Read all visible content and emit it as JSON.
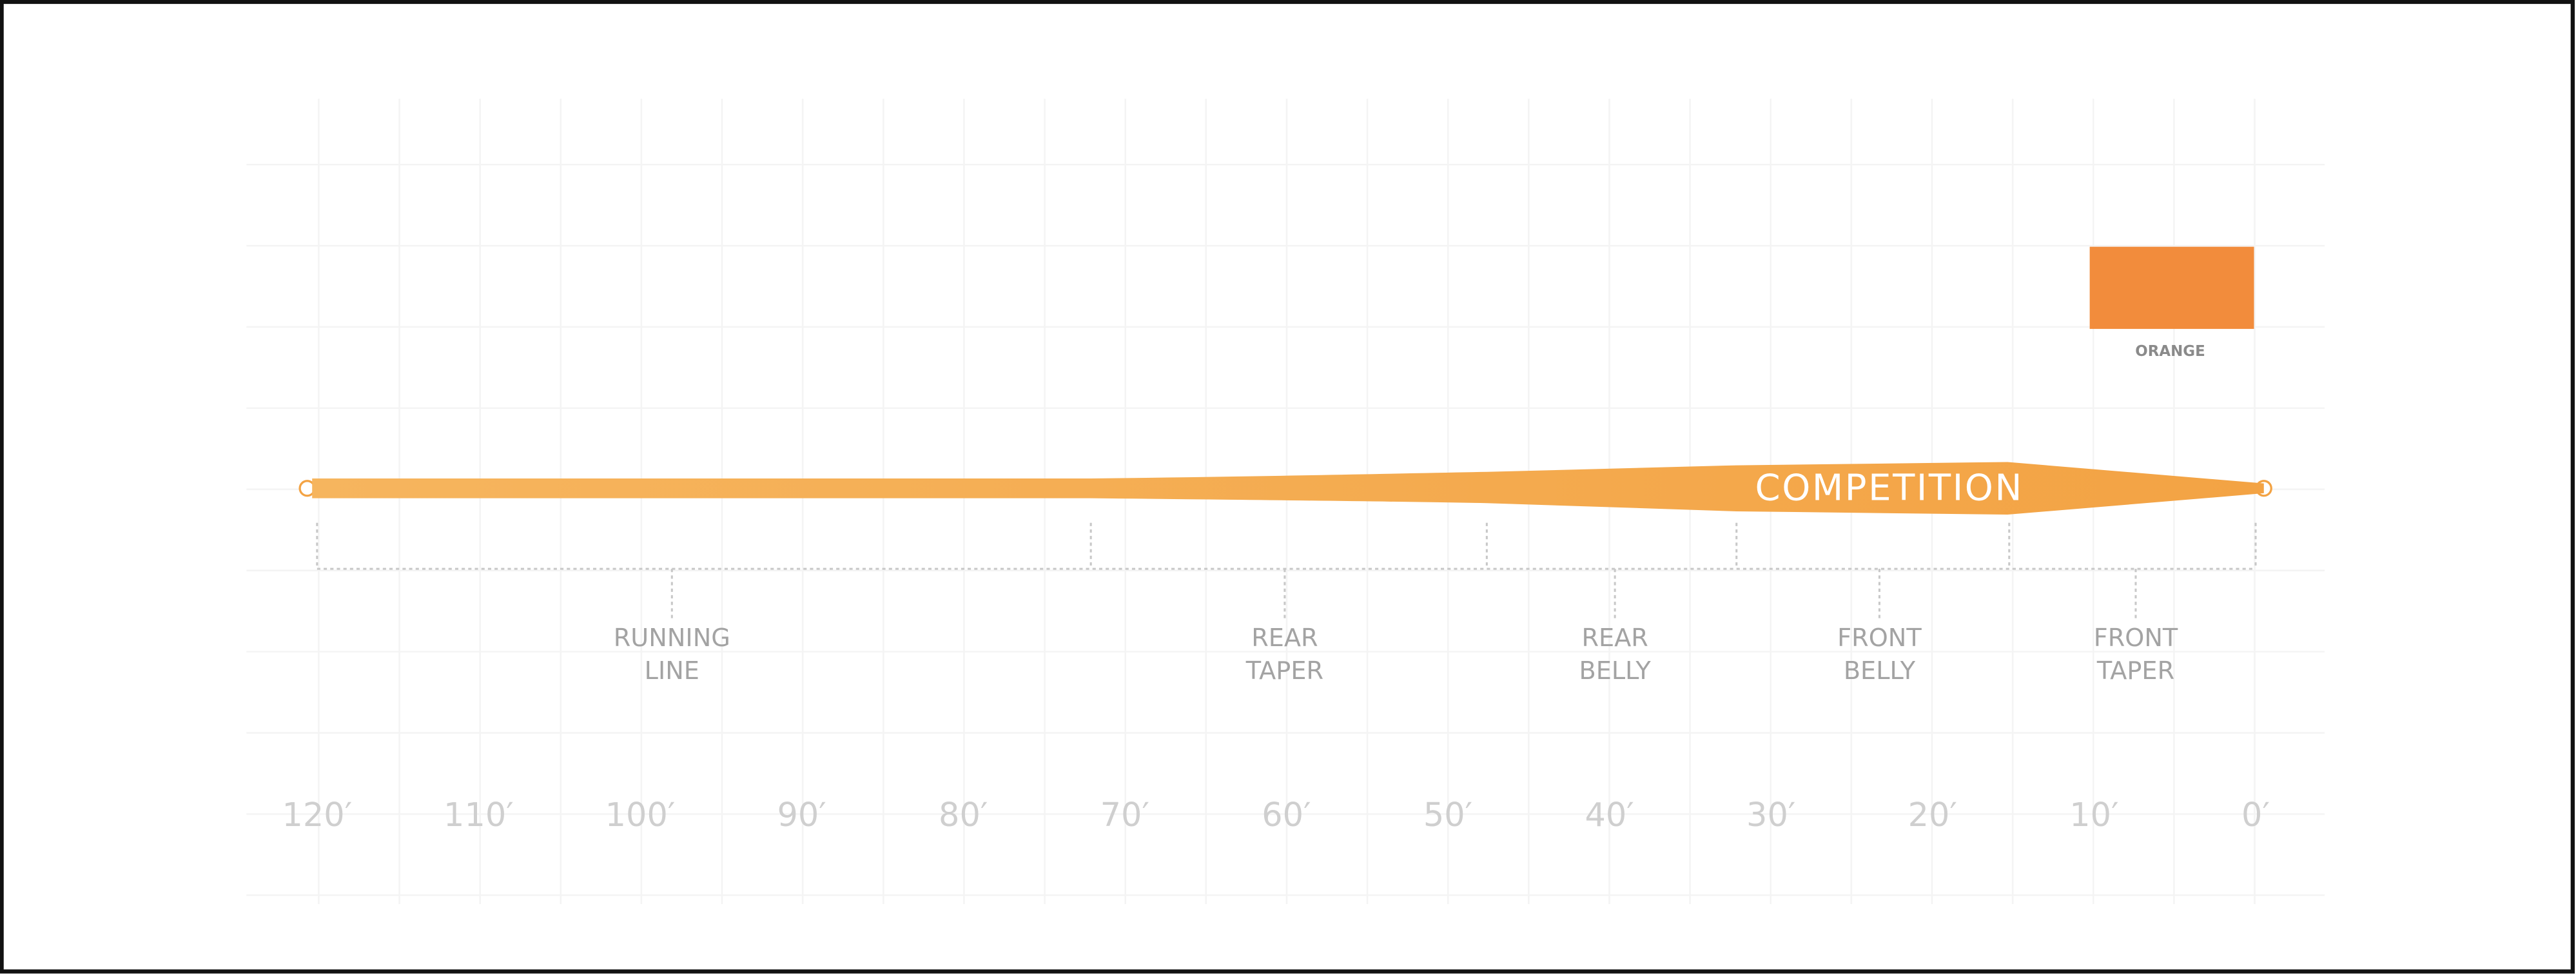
{
  "line_name": "COMPETITION",
  "swatch": {
    "label": "ORANGE"
  },
  "sections": [
    {
      "lines": [
        "RUNNING",
        "LINE"
      ]
    },
    {
      "lines": [
        "REAR",
        "TAPER"
      ]
    },
    {
      "lines": [
        "REAR",
        "BELLY"
      ]
    },
    {
      "lines": [
        "FRONT",
        "BELLY"
      ]
    },
    {
      "lines": [
        "FRONT",
        "TAPER"
      ]
    }
  ],
  "axis": {
    "labels": [
      "120′",
      "110′",
      "100′",
      "90′",
      "80′",
      "70′",
      "60′",
      "50′",
      "40′",
      "30′",
      "20′",
      "10′",
      "0′"
    ]
  }
}
